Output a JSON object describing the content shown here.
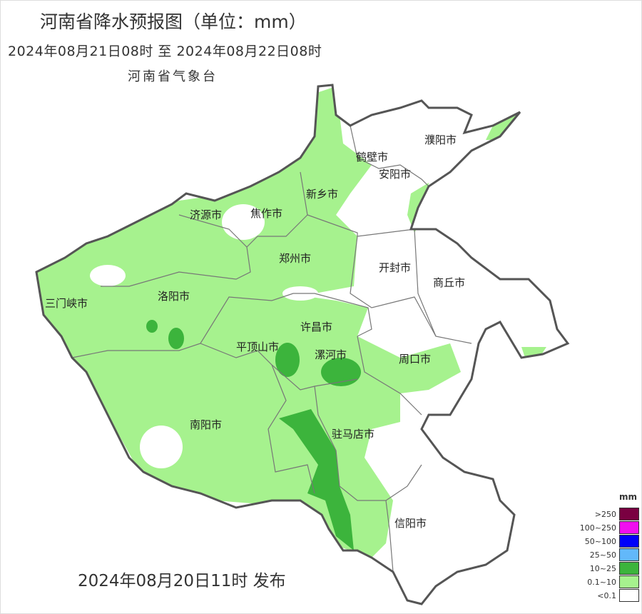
{
  "title": "河南省降水预报图（单位：mm）",
  "period": "2024年08月21日08时  至  2024年08月22日08时",
  "agency": "河南省气象台",
  "issued": "2024年08月20日11时 发布",
  "cities": [
    "濮阳市",
    "鹤壁市",
    "安阳市",
    "新乡市",
    "济源市",
    "焦作市",
    "郑州市",
    "开封市",
    "商丘市",
    "三门峡市",
    "洛阳市",
    "许昌市",
    "平顶山市",
    "漯河市",
    "周口市",
    "南阳市",
    "驻马店市",
    "信阳市"
  ],
  "legend": {
    "unit": "mm",
    "items": [
      {
        "label": ">250",
        "color": "#7a0041"
      },
      {
        "label": "100~250",
        "color": "#f00ff0"
      },
      {
        "label": "50~100",
        "color": "#0000fa"
      },
      {
        "label": "25~50",
        "color": "#62b8fa"
      },
      {
        "label": "10~25",
        "color": "#3cb43c"
      },
      {
        "label": "0.1~10",
        "color": "#a6f28e"
      },
      {
        "label": "<0.1",
        "color": "#ffffff"
      }
    ]
  }
}
